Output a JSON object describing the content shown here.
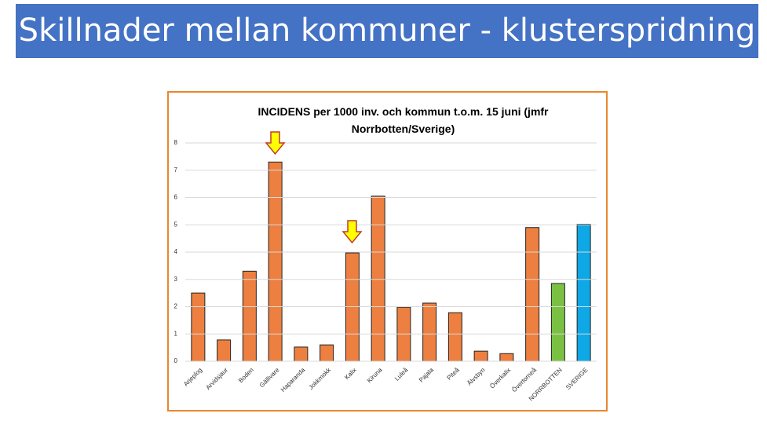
{
  "header": {
    "title": "Skillnader mellan kommuner - klusterspridning"
  },
  "chart_data": {
    "type": "bar",
    "title": "INCIDENS per 1000 inv. och kommun t.o.m. 15 juni (jmfr Norrbotten/Sverige)",
    "categories": [
      "Arjeplog",
      "Arvidsjaur",
      "Boden",
      "Gällivare",
      "Haparanda",
      "Jokkmokk",
      "Kalix",
      "Kiruna",
      "Luleå",
      "Pajala",
      "Piteå",
      "Älvsbyn",
      "Överkalix",
      "Övertorneå",
      "NORRBOTTEN",
      "SVERIGE"
    ],
    "values": [
      2.5,
      0.78,
      3.3,
      7.3,
      0.52,
      0.6,
      3.97,
      6.05,
      1.98,
      2.13,
      1.78,
      0.37,
      0.28,
      4.9,
      2.85,
      5.02
    ],
    "colors": [
      "#ed8040",
      "#ed8040",
      "#ed8040",
      "#ed8040",
      "#ed8040",
      "#ed8040",
      "#ed8040",
      "#ed8040",
      "#ed8040",
      "#ed8040",
      "#ed8040",
      "#ed8040",
      "#ed8040",
      "#ed8040",
      "#7ac143",
      "#0fa8e6"
    ],
    "ylim": [
      0,
      8
    ],
    "yticks": [
      0,
      1,
      2,
      3,
      4,
      5,
      6,
      7,
      8
    ],
    "grid": true
  }
}
